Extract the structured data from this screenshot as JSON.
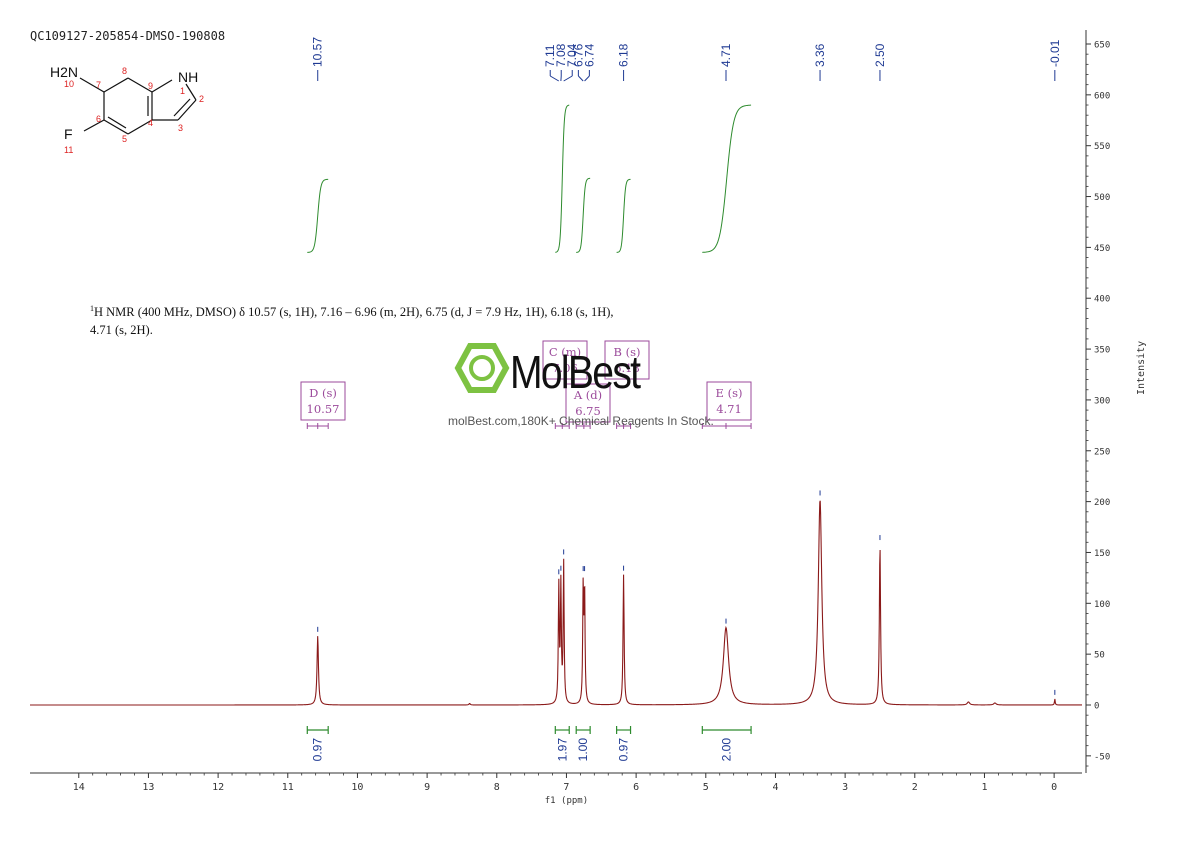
{
  "sample_id": "QC109127-205854-DMSO-190808",
  "structure": {
    "labels": [
      "H2N",
      "10",
      "8",
      "7",
      "9",
      "NH",
      "1",
      "2",
      "6",
      "4",
      "5",
      "3",
      "F",
      "11"
    ]
  },
  "nmr_text": {
    "sup": "1",
    "line1": "H NMR (400 MHz, DMSO) δ 10.57 (s, 1H), 7.16 – 6.96 (m, 2H), 6.75 (d, J = 7.9 Hz, 1H), 6.18 (s, 1H),",
    "line2": "4.71 (s, 2H)."
  },
  "watermark": {
    "brand": "MolBest",
    "tagline": "molBest.com,180K+ Chemical Reagents In Stock."
  },
  "colors": {
    "spectrum": "#8b1a1a",
    "peak_label": "#1f3a93",
    "integral": "#2e8b2e",
    "multiplet": "#9b4a9b",
    "logo_green": "#7dc242"
  },
  "chart_data": {
    "type": "line",
    "xlabel": "f1 (ppm)",
    "ylabel": "Intensity",
    "xlim": [
      14.7,
      -0.4
    ],
    "ylim": [
      -65,
      660
    ],
    "x_ticks": [
      14,
      13,
      12,
      11,
      10,
      9,
      8,
      7,
      6,
      5,
      4,
      3,
      2,
      1,
      0
    ],
    "y_ticks": [
      650,
      600,
      550,
      500,
      450,
      400,
      350,
      300,
      250,
      200,
      150,
      100,
      50,
      0,
      -50
    ],
    "peaks": [
      {
        "ppm": 10.57,
        "height": 68,
        "width": 0.012
      },
      {
        "ppm": 7.11,
        "height": 115,
        "width": 0.008
      },
      {
        "ppm": 7.08,
        "height": 115,
        "width": 0.008
      },
      {
        "ppm": 7.04,
        "height": 138,
        "width": 0.008
      },
      {
        "ppm": 6.76,
        "height": 112,
        "width": 0.008
      },
      {
        "ppm": 6.74,
        "height": 112,
        "width": 0.008
      },
      {
        "ppm": 6.18,
        "height": 128,
        "width": 0.009
      },
      {
        "ppm": 4.71,
        "height": 76,
        "width": 0.045
      },
      {
        "ppm": 3.36,
        "height": 202,
        "width": 0.03
      },
      {
        "ppm": 2.5,
        "height": 158,
        "width": 0.01
      },
      {
        "ppm": 1.23,
        "height": 3,
        "width": 0.02
      },
      {
        "ppm": 0.85,
        "height": 2,
        "width": 0.02
      },
      {
        "ppm": 8.39,
        "height": 1.5,
        "width": 0.01
      },
      {
        "ppm": -0.01,
        "height": 6,
        "width": 0.006
      }
    ],
    "peak_labels": [
      "10.57",
      "7.11",
      "7.08",
      "7.04",
      "6.76",
      "6.74",
      "6.18",
      "4.71",
      "3.36",
      "2.50",
      "-0.01"
    ],
    "peak_label_ppm": [
      10.57,
      7.11,
      7.08,
      7.04,
      6.76,
      6.74,
      6.18,
      4.71,
      3.36,
      2.5,
      -0.01
    ],
    "integrals": [
      {
        "from": 10.72,
        "to": 10.42,
        "value": "0.97",
        "bottom": 445,
        "top": 517
      },
      {
        "from": 7.16,
        "to": 6.96,
        "value": "1.97",
        "bottom": 445,
        "top": 590
      },
      {
        "from": 6.86,
        "to": 6.66,
        "value": "1.00",
        "bottom": 445,
        "top": 518
      },
      {
        "from": 6.28,
        "to": 6.08,
        "value": "0.97",
        "bottom": 445,
        "top": 517
      },
      {
        "from": 5.05,
        "to": 4.35,
        "value": "2.00",
        "bottom": 445,
        "top": 590
      }
    ],
    "multiplets": [
      {
        "letter": "D (s)",
        "value": "10.57",
        "ppm": 10.57,
        "from": 10.72,
        "to": 10.42
      },
      {
        "letter": "C (m)",
        "value": "7.06",
        "ppm": 7.06,
        "from": 7.16,
        "to": 6.96
      },
      {
        "letter": "A (d)",
        "value": "6.75",
        "ppm": 6.75,
        "from": 6.86,
        "to": 6.66
      },
      {
        "letter": "B (s)",
        "value": "6.18",
        "ppm": 6.18,
        "from": 6.28,
        "to": 6.08
      },
      {
        "letter": "E (s)",
        "value": "4.71",
        "ppm": 4.71,
        "from": 5.05,
        "to": 4.35
      }
    ]
  }
}
